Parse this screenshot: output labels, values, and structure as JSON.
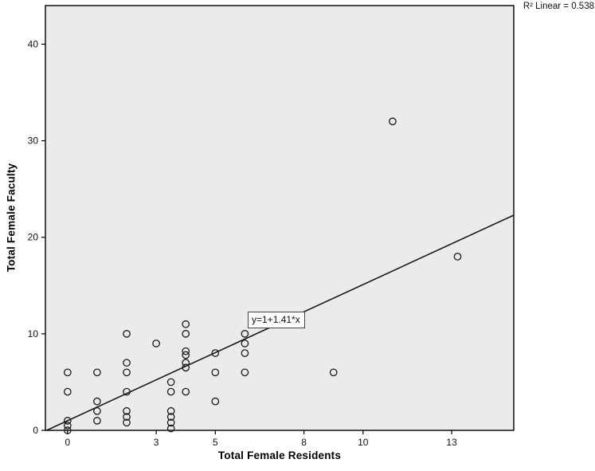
{
  "chart_data": {
    "type": "scatter",
    "title": "",
    "xlabel": "Total Female Residents",
    "ylabel": "Total Female Faculty",
    "r2_label": "R² Linear = 0.538",
    "xlim": [
      -0.75,
      15.1
    ],
    "ylim": [
      0,
      44
    ],
    "x_ticks": [
      0,
      3,
      5,
      8,
      10,
      13
    ],
    "y_ticks": [
      0,
      10,
      20,
      30,
      40
    ],
    "grid": false,
    "legend": "none",
    "plot_bg": "#ebebeb",
    "point_color": "#1a1a1a",
    "line_color": "#1a1a1a",
    "points": [
      [
        0,
        6
      ],
      [
        0,
        4
      ],
      [
        0,
        1
      ],
      [
        0,
        0.5
      ],
      [
        0,
        0
      ],
      [
        1,
        6
      ],
      [
        1,
        3
      ],
      [
        1,
        2
      ],
      [
        1,
        1
      ],
      [
        2,
        10
      ],
      [
        2,
        7
      ],
      [
        2,
        6
      ],
      [
        2,
        4
      ],
      [
        2,
        2
      ],
      [
        2,
        1.4
      ],
      [
        2,
        0.8
      ],
      [
        3,
        9
      ],
      [
        3.5,
        5
      ],
      [
        3.5,
        4
      ],
      [
        3.5,
        2
      ],
      [
        3.5,
        1.4
      ],
      [
        3.5,
        0.8
      ],
      [
        3.5,
        0.2
      ],
      [
        4,
        11
      ],
      [
        4,
        10
      ],
      [
        4,
        8.2
      ],
      [
        4,
        7.8
      ],
      [
        4,
        7
      ],
      [
        4,
        6.5
      ],
      [
        4,
        4
      ],
      [
        5,
        8
      ],
      [
        5,
        6
      ],
      [
        5,
        3
      ],
      [
        6,
        10
      ],
      [
        6,
        9
      ],
      [
        6,
        8
      ],
      [
        6,
        6
      ],
      [
        9,
        6
      ],
      [
        11,
        32
      ],
      [
        13.2,
        18
      ]
    ],
    "regression": {
      "slope": 1.41,
      "intercept": 1,
      "label": "y=1+1.41*x"
    }
  }
}
